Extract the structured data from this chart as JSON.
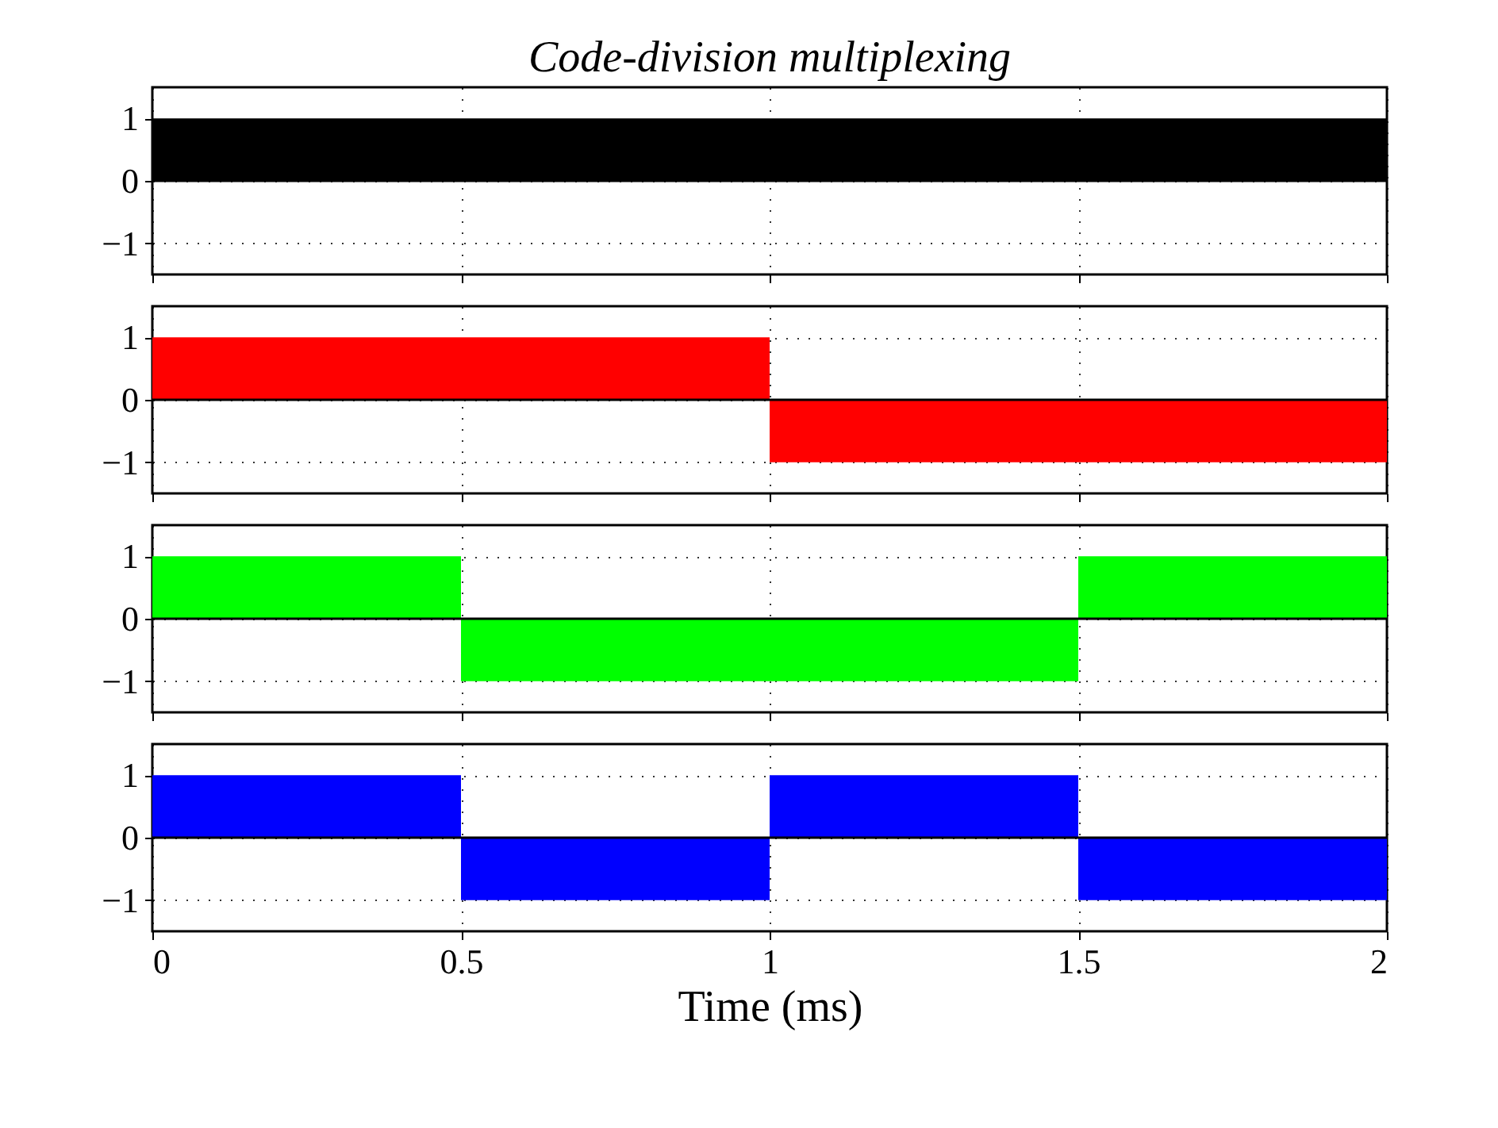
{
  "chart_data": [
    {
      "type": "area",
      "title": "Code-division multiplexing",
      "xlim": [
        0,
        2
      ],
      "xticks": [
        0,
        0.5,
        1,
        1.5,
        2
      ],
      "ylim": [
        -1.5,
        1.5
      ],
      "yticks": [
        -1,
        0,
        1
      ],
      "grid": true,
      "tick_labels": "y",
      "ref_lines": [
        {
          "axis": "y",
          "value": 0,
          "color": "#000000"
        }
      ],
      "series": [
        {
          "color": "#000000",
          "x": [
            0,
            2
          ],
          "values": [
            1,
            1
          ]
        }
      ]
    },
    {
      "type": "bar",
      "xlim": [
        0,
        2
      ],
      "xticks": [
        0,
        0.5,
        1,
        1.5,
        2
      ],
      "ylim": [
        -1.5,
        1.5
      ],
      "yticks": [
        -1,
        0,
        1
      ],
      "grid": true,
      "tick_labels": "y",
      "ref_lines": [
        {
          "axis": "y",
          "value": 0,
          "color": "#000000"
        }
      ],
      "series": [
        {
          "color": "#ff0000",
          "x": [
            0.25,
            0.75,
            1.25,
            1.75
          ],
          "values": [
            1,
            1,
            -1,
            -1
          ]
        }
      ]
    },
    {
      "type": "bar",
      "xlim": [
        0,
        2
      ],
      "xticks": [
        0,
        0.5,
        1,
        1.5,
        2
      ],
      "ylim": [
        -1.5,
        1.5
      ],
      "yticks": [
        -1,
        0,
        1
      ],
      "grid": true,
      "tick_labels": "y",
      "ref_lines": [
        {
          "axis": "y",
          "value": 0,
          "color": "#000000"
        }
      ],
      "series": [
        {
          "color": "#00ff00",
          "x": [
            0.25,
            0.75,
            1.25,
            1.75
          ],
          "values": [
            1,
            -1,
            -1,
            1
          ]
        }
      ]
    },
    {
      "type": "bar",
      "xlabel": "Time (ms)",
      "xlim": [
        0,
        2
      ],
      "xticks": [
        0,
        0.5,
        1,
        1.5,
        2
      ],
      "ylim": [
        -1.5,
        1.5
      ],
      "yticks": [
        -1,
        0,
        1
      ],
      "grid": true,
      "ref_lines": [
        {
          "axis": "y",
          "value": 0,
          "color": "#000000"
        }
      ],
      "series": [
        {
          "color": "#0000ff",
          "x": [
            0.25,
            0.75,
            1.25,
            1.75
          ],
          "values": [
            1,
            -1,
            1,
            -1
          ]
        }
      ]
    }
  ]
}
